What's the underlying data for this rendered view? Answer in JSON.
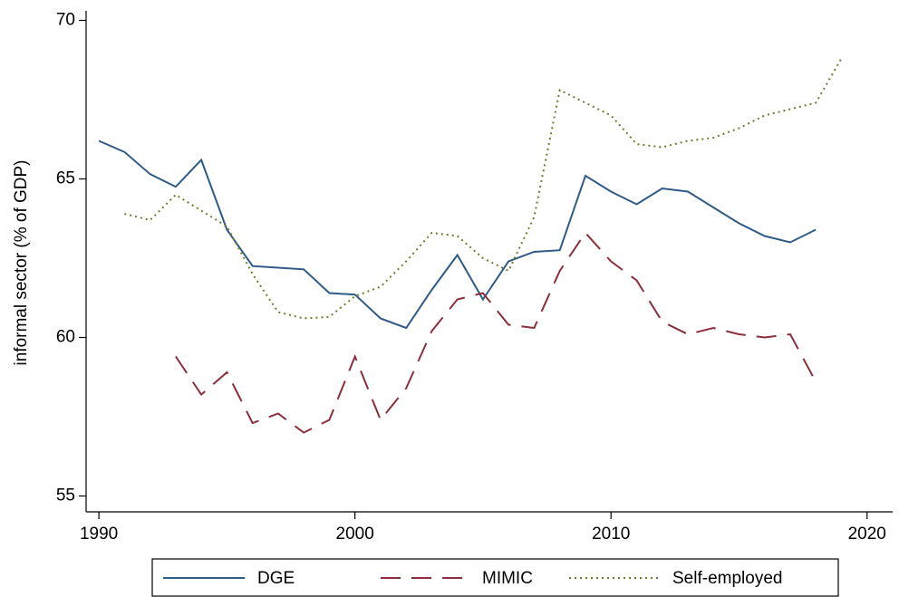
{
  "chart_data": {
    "type": "line",
    "y_label": "informal sector (% of GDP)",
    "x": [
      1990,
      1991,
      1992,
      1993,
      1994,
      1995,
      1996,
      1997,
      1998,
      1999,
      2000,
      2001,
      2002,
      2003,
      2004,
      2005,
      2006,
      2007,
      2008,
      2009,
      2010,
      2011,
      2012,
      2013,
      2014,
      2015,
      2016,
      2017,
      2018,
      2019
    ],
    "series": [
      {
        "name": "DGE",
        "color": "#2e5b87",
        "dash": "solid",
        "values": [
          66.2,
          65.85,
          65.15,
          64.75,
          65.6,
          63.4,
          62.25,
          62.2,
          62.15,
          61.4,
          61.35,
          60.6,
          60.3,
          61.5,
          62.6,
          61.2,
          62.4,
          62.7,
          62.75,
          65.1,
          64.6,
          64.2,
          64.7,
          64.6,
          64.1,
          63.6,
          63.2,
          63.0,
          63.4,
          null
        ]
      },
      {
        "name": "MIMIC",
        "color": "#8b2f3a",
        "dash": "dashed",
        "values": [
          null,
          null,
          null,
          59.4,
          58.2,
          58.9,
          57.3,
          57.6,
          57.0,
          57.4,
          59.4,
          57.4,
          58.4,
          60.2,
          61.2,
          61.4,
          60.4,
          60.3,
          62.1,
          63.3,
          62.4,
          61.8,
          60.5,
          60.1,
          60.3,
          60.1,
          60.0,
          60.1,
          58.6,
          null
        ]
      },
      {
        "name": "Self-employed",
        "color": "#6b7d2e",
        "dash": "dotted",
        "values": [
          null,
          63.9,
          63.7,
          64.5,
          64.0,
          63.5,
          62.0,
          60.8,
          60.6,
          60.65,
          61.3,
          61.6,
          62.4,
          63.3,
          63.2,
          62.5,
          62.1,
          63.8,
          67.8,
          67.4,
          67.0,
          66.1,
          66.0,
          66.2,
          66.3,
          66.6,
          67.0,
          67.2,
          67.4,
          68.8
        ]
      }
    ],
    "xlim": [
      1989.5,
      2021
    ],
    "xticks": [
      1990,
      2000,
      2010,
      2020
    ],
    "ylim": [
      54.5,
      70.3
    ],
    "yticks": [
      55,
      60,
      65,
      70
    ],
    "legend": "bottom"
  }
}
